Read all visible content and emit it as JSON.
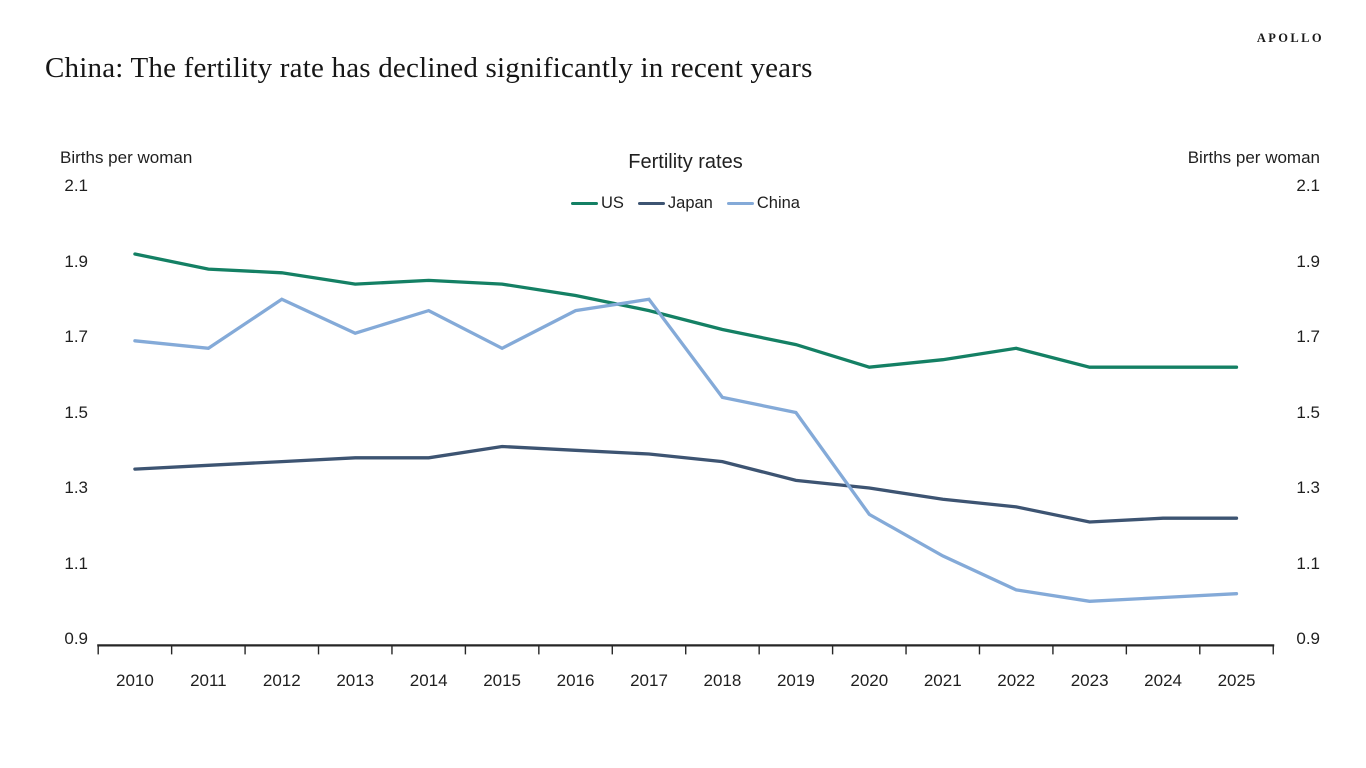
{
  "logo_text": "APOLLO",
  "page_title": "China: The fertility rate has declined significantly in recent years",
  "chart_data": {
    "type": "line",
    "title": "Fertility rates",
    "unit_label_left": "Births per woman",
    "unit_label_right": "Births per woman",
    "x": [
      "2010",
      "2011",
      "2012",
      "2013",
      "2014",
      "2015",
      "2016",
      "2017",
      "2018",
      "2019",
      "2020",
      "2021",
      "2022",
      "2023",
      "2024",
      "2025"
    ],
    "series": [
      {
        "name": "US",
        "color": "#148064",
        "values": [
          1.92,
          1.88,
          1.87,
          1.84,
          1.85,
          1.84,
          1.81,
          1.77,
          1.72,
          1.68,
          1.62,
          1.64,
          1.67,
          1.62,
          1.62,
          1.62
        ]
      },
      {
        "name": "Japan",
        "color": "#3d5472",
        "values": [
          1.35,
          1.36,
          1.37,
          1.38,
          1.38,
          1.41,
          1.4,
          1.39,
          1.37,
          1.32,
          1.3,
          1.27,
          1.25,
          1.21,
          1.22,
          1.22
        ]
      },
      {
        "name": "China",
        "color": "#84aad8",
        "values": [
          1.69,
          1.67,
          1.8,
          1.71,
          1.77,
          1.67,
          1.77,
          1.8,
          1.54,
          1.5,
          1.23,
          1.12,
          1.03,
          1.0,
          1.01,
          1.02
        ]
      }
    ],
    "ylim": [
      0.9,
      2.1
    ],
    "yticks": [
      "2.1",
      "1.9",
      "1.7",
      "1.5",
      "1.3",
      "1.1",
      "0.9"
    ],
    "grid": false,
    "legend_position": "top-center",
    "axis_color": "#262626",
    "text_color": "#1f1f1f"
  }
}
